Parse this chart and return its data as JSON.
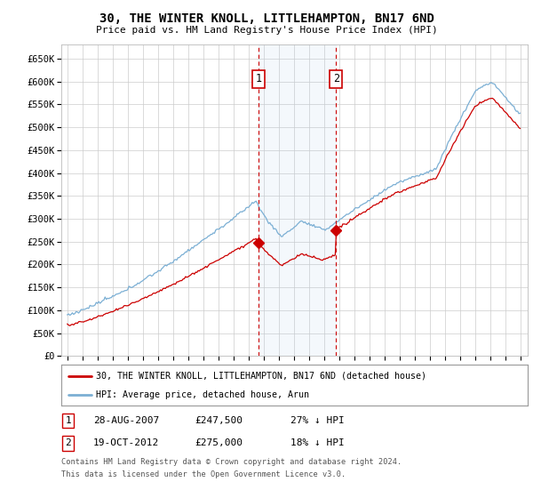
{
  "title": "30, THE WINTER KNOLL, LITTLEHAMPTON, BN17 6ND",
  "subtitle": "Price paid vs. HM Land Registry's House Price Index (HPI)",
  "legend_line1": "30, THE WINTER KNOLL, LITTLEHAMPTON, BN17 6ND (detached house)",
  "legend_line2": "HPI: Average price, detached house, Arun",
  "footnote1": "Contains HM Land Registry data © Crown copyright and database right 2024.",
  "footnote2": "This data is licensed under the Open Government Licence v3.0.",
  "transaction1_label": "1",
  "transaction1_date": "28-AUG-2007",
  "transaction1_price": "£247,500",
  "transaction1_hpi": "27% ↓ HPI",
  "transaction2_label": "2",
  "transaction2_date": "19-OCT-2012",
  "transaction2_price": "£275,000",
  "transaction2_hpi": "18% ↓ HPI",
  "hpi_color": "#7bafd4",
  "price_color": "#cc0000",
  "vline_color": "#cc0000",
  "marker_box_color": "#cc0000",
  "grid_color": "#cccccc",
  "bg_color": "#ffffff",
  "ylim": [
    0,
    680000
  ],
  "ytick_vals": [
    0,
    50000,
    100000,
    150000,
    200000,
    250000,
    300000,
    350000,
    400000,
    450000,
    500000,
    550000,
    600000,
    650000
  ],
  "ytick_labels": [
    "£0",
    "£50K",
    "£100K",
    "£150K",
    "£200K",
    "£250K",
    "£300K",
    "£350K",
    "£400K",
    "£450K",
    "£500K",
    "£550K",
    "£600K",
    "£650K"
  ],
  "transaction1_x": 2007.65,
  "transaction1_y": 247500,
  "transaction2_x": 2012.8,
  "transaction2_y": 275000,
  "xmin": 1995,
  "xmax": 2025
}
